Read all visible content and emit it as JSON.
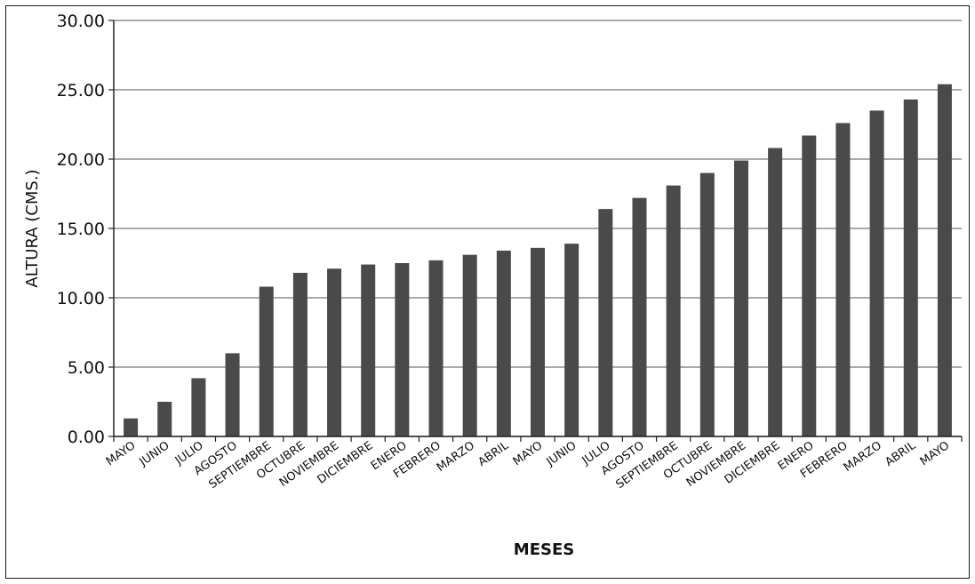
{
  "chart_data": {
    "type": "bar",
    "xlabel": "MESES",
    "ylabel": "ALTURA (CMS.)",
    "ylim": [
      0,
      30
    ],
    "yticks": [
      "0.00",
      "5.00",
      "10.00",
      "15.00",
      "20.00",
      "25.00",
      "30.00"
    ],
    "grid": true,
    "bar_color": "#4a4a4a",
    "categories": [
      "MAYO",
      "JUNIO",
      "JULIO",
      "AGOSTO",
      "SEPTIEMBRE",
      "OCTUBRE",
      "NOVIEMBRE",
      "DICIEMBRE",
      "ENERO",
      "FEBRERO",
      "MARZO",
      "ABRIL",
      "MAYO",
      "JUNIO",
      "JULIO",
      "AGOSTO",
      "SEPTIEMBRE",
      "OCTUBRE",
      "NOVIEMBRE",
      "DICIEMBRE",
      "ENERO",
      "FEBRERO",
      "MARZO",
      "ABRIL",
      "MAYO"
    ],
    "values": [
      1.3,
      2.5,
      4.2,
      6.0,
      10.8,
      11.8,
      12.1,
      12.4,
      12.5,
      12.7,
      13.1,
      13.4,
      13.6,
      13.9,
      16.4,
      17.2,
      18.1,
      19.0,
      19.9,
      20.8,
      21.7,
      22.6,
      23.5,
      24.3,
      25.4
    ]
  }
}
